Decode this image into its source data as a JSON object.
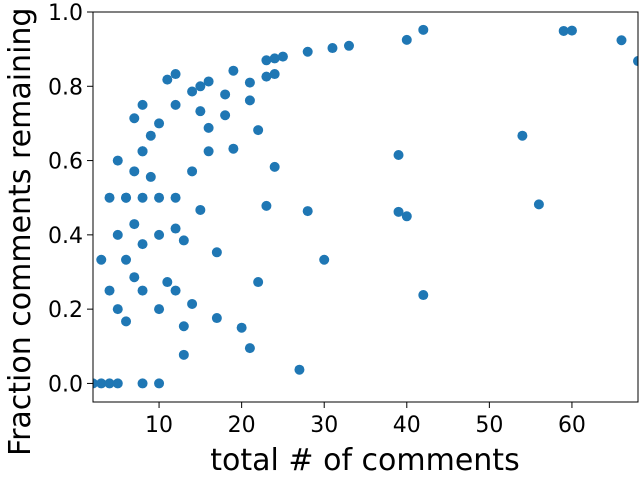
{
  "chart_data": {
    "type": "scatter",
    "title": "",
    "xlabel": "total # of comments",
    "ylabel": "Fraction comments remaining",
    "xlim": [
      2,
      68
    ],
    "ylim": [
      -0.05,
      1.0
    ],
    "grid": false,
    "legend": "none",
    "marker_color": "#1f77b4",
    "xticks": [
      10,
      20,
      30,
      40,
      50,
      60
    ],
    "xtick_labels": [
      "10",
      "20",
      "30",
      "40",
      "50",
      "60"
    ],
    "yticks": [
      0.0,
      0.2,
      0.4,
      0.6,
      0.8,
      1.0
    ],
    "ytick_labels": [
      "0.0",
      "0.2",
      "0.4",
      "0.6",
      "0.8",
      "1.0"
    ],
    "series": [
      {
        "name": "",
        "x": [
          2,
          3,
          3,
          4,
          4,
          4,
          5,
          5,
          5,
          5,
          6,
          6,
          6,
          6,
          7,
          7,
          7,
          7,
          8,
          8,
          8,
          8,
          8,
          8,
          8,
          9,
          9,
          10,
          10,
          10,
          10,
          10,
          11,
          11,
          12,
          12,
          12,
          12,
          12,
          13,
          13,
          13,
          14,
          14,
          14,
          15,
          15,
          15,
          16,
          16,
          16,
          17,
          17,
          18,
          18,
          19,
          19,
          20,
          21,
          21,
          21,
          22,
          22,
          23,
          23,
          23,
          24,
          24,
          24,
          25,
          27,
          28,
          28,
          30,
          31,
          33,
          39,
          39,
          40,
          40,
          42,
          42,
          54,
          56,
          59,
          60,
          66,
          68
        ],
        "y": [
          0.0,
          0.333,
          0.0,
          0.5,
          0.25,
          0.0,
          0.6,
          0.4,
          0.2,
          0.0,
          0.5,
          0.333,
          0.167,
          0.5,
          0.714,
          0.571,
          0.429,
          0.286,
          0.75,
          0.625,
          0.5,
          0.375,
          0.25,
          0.0,
          0.625,
          0.667,
          0.556,
          0.7,
          0.5,
          0.4,
          0.2,
          0.0,
          0.818,
          0.273,
          0.833,
          0.75,
          0.5,
          0.417,
          0.25,
          0.385,
          0.154,
          0.077,
          0.786,
          0.571,
          0.214,
          0.8,
          0.733,
          0.467,
          0.813,
          0.688,
          0.625,
          0.353,
          0.176,
          0.778,
          0.722,
          0.842,
          0.632,
          0.15,
          0.81,
          0.762,
          0.095,
          0.682,
          0.273,
          0.87,
          0.826,
          0.478,
          0.875,
          0.833,
          0.583,
          0.88,
          0.037,
          0.893,
          0.464,
          0.333,
          0.903,
          0.909,
          0.615,
          0.462,
          0.925,
          0.45,
          0.952,
          0.238,
          0.667,
          0.482,
          0.949,
          0.95,
          0.924,
          0.868
        ]
      }
    ]
  }
}
